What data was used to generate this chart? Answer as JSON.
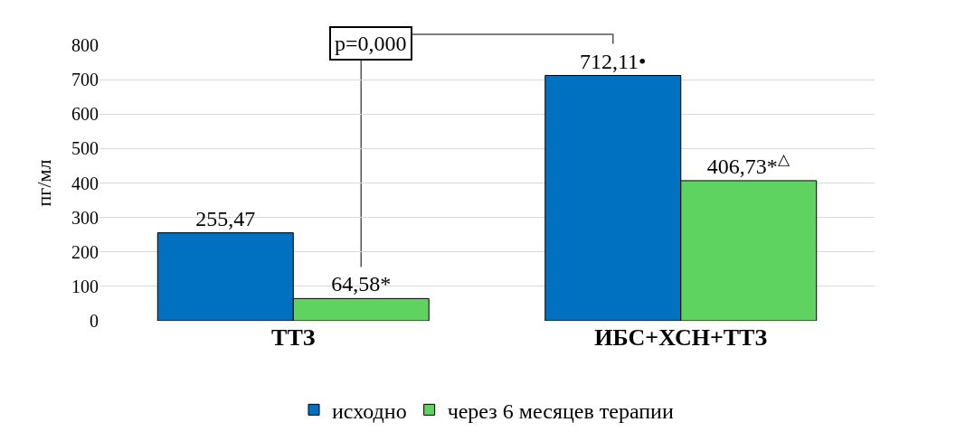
{
  "chart_data": {
    "type": "bar",
    "ylabel": "пг/мл",
    "categories": [
      "ТТЗ",
      "ИБС+ХСН+ТТЗ"
    ],
    "series": [
      {
        "name": "исходно",
        "color": "#0070c0",
        "values": [
          255.47,
          712.11
        ],
        "value_labels": [
          "255,47",
          "712,11•"
        ]
      },
      {
        "name": "через 6 месяцев терапии",
        "color": "#5fd35f",
        "values": [
          64.58,
          406.73
        ],
        "value_labels": [
          "64,58*",
          "406,73*$^{△}$"
        ]
      }
    ],
    "ylim": [
      0,
      800
    ],
    "yticks": [
      0,
      100,
      200,
      300,
      400,
      500,
      600,
      700,
      800
    ],
    "grid": "y",
    "legend": "bottom",
    "annotations": [
      "p=0,000"
    ]
  }
}
